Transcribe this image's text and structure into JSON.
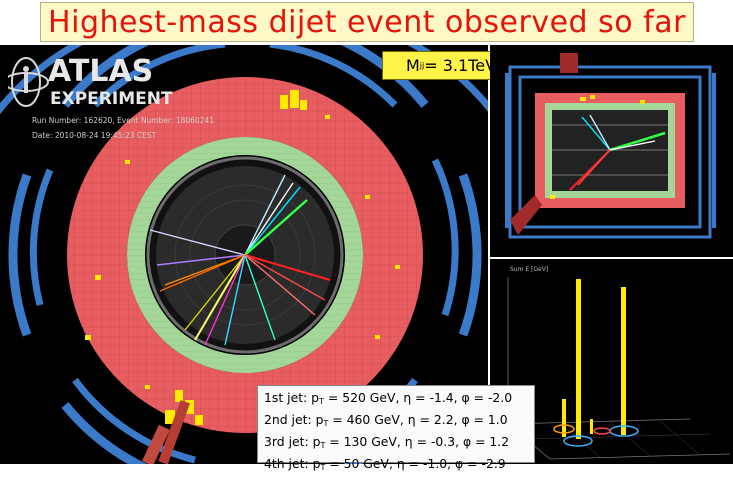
{
  "title": "Highest-mass dijet event observed so far",
  "logo": {
    "line1": "ATLAS",
    "line2": "EXPERIMENT"
  },
  "run_info": {
    "run_line": "Run Number: 162620, Event Number: 18060241",
    "date_line": "Date: 2010-08-24 19:45:23 CEST"
  },
  "mass_label": {
    "prefix": "M",
    "subscript": "jj",
    "value": " = 3.1TeV"
  },
  "jets": [
    {
      "prefix": "1st jet: p",
      "sub": "T",
      "rest": " = 520 GeV, η = -1.4, φ = -2.0"
    },
    {
      "prefix": "2nd jet: p",
      "sub": "T",
      "rest": " = 460 GeV, η = 2.2, φ = 1.0"
    },
    {
      "prefix": "3rd jet: p",
      "sub": "T",
      "rest": " = 130 GeV, η = -0.3, φ = 1.2"
    },
    {
      "prefix": "4th jet: p",
      "sub": "T",
      "rest": " = 50 GeV, η = -1.0, φ = -2.9"
    }
  ],
  "lego_axis_title": "Sum E [GeV]",
  "colors": {
    "title_text": "#e8120c",
    "banner_bg": "#fff9c8",
    "mass_box_bg": "#fff34a",
    "calorimeter": "#e85d60",
    "em_ring": "#a3d698",
    "muon_chambers": "#3b79c9"
  }
}
